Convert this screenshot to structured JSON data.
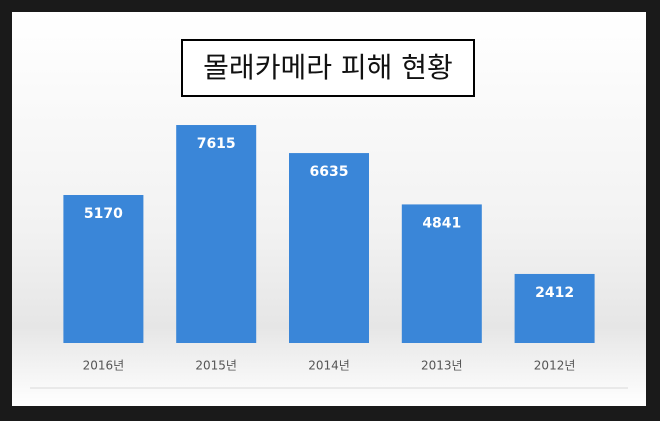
{
  "chart_data": {
    "type": "bar",
    "title": "몰래카메라 피해 현황",
    "categories": [
      "2016년",
      "2015년",
      "2014년",
      "2013년",
      "2012년"
    ],
    "values": [
      5170,
      7615,
      6635,
      4841,
      2412
    ],
    "color": "#3a86d8",
    "ylim": [
      0,
      8000
    ]
  }
}
